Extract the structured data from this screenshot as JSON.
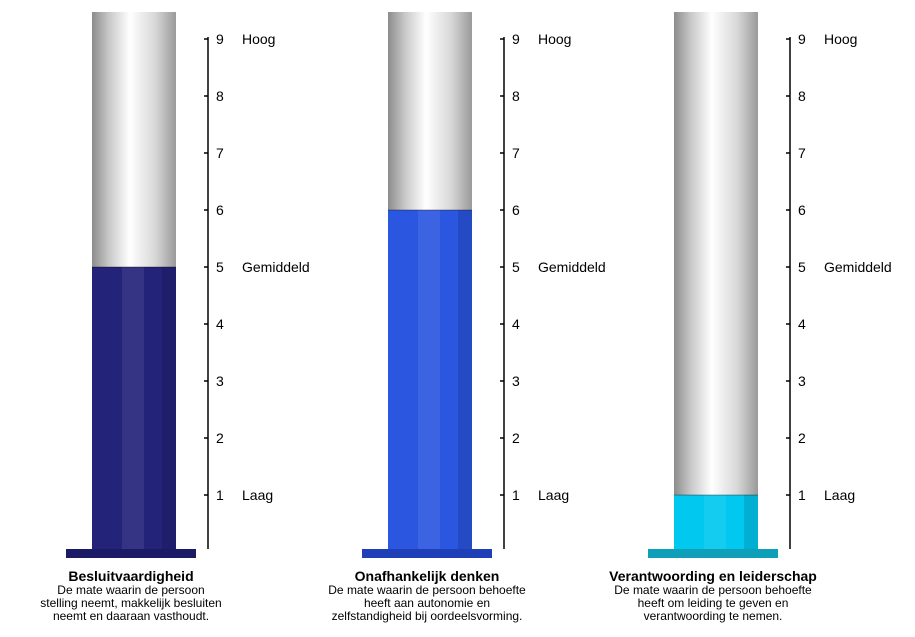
{
  "chart_data": {
    "type": "bar",
    "ylim": [
      0,
      10
    ],
    "yticks": [
      1,
      2,
      3,
      4,
      5,
      6,
      7,
      8,
      9
    ],
    "level_labels": [
      {
        "value": 9,
        "label": "Hoog"
      },
      {
        "value": 5,
        "label": "Gemiddeld"
      },
      {
        "value": 1,
        "label": "Laag"
      }
    ],
    "categories": [
      "Besluitvaardigheid",
      "Onafhankelijk denken",
      "Verantwoording en leiderschap"
    ],
    "values": [
      5,
      6,
      1
    ],
    "colors": [
      "#24237a",
      "#2b56e0",
      "#00c8ee"
    ],
    "base_colors": [
      "#1b1a66",
      "#1f3fb8",
      "#0f9fb8"
    ],
    "gauges": [
      {
        "title": "Besluitvaardigheid",
        "description_lines": [
          "De mate waarin de persoon",
          "stelling neemt, makkelijk besluiten",
          "neemt en daaraan vasthoudt."
        ]
      },
      {
        "title": "Onafhankelijk denken",
        "description_lines": [
          "De mate waarin de persoon behoefte",
          "heeft aan autonomie en",
          "zelfstandigheid bij oordeelsvorming."
        ]
      },
      {
        "title": "Verantwoording en leiderschap",
        "description_lines": [
          "De mate waarin de persoon behoefte",
          "heeft om leiding te geven en",
          "verantwoording te nemen."
        ]
      }
    ]
  }
}
